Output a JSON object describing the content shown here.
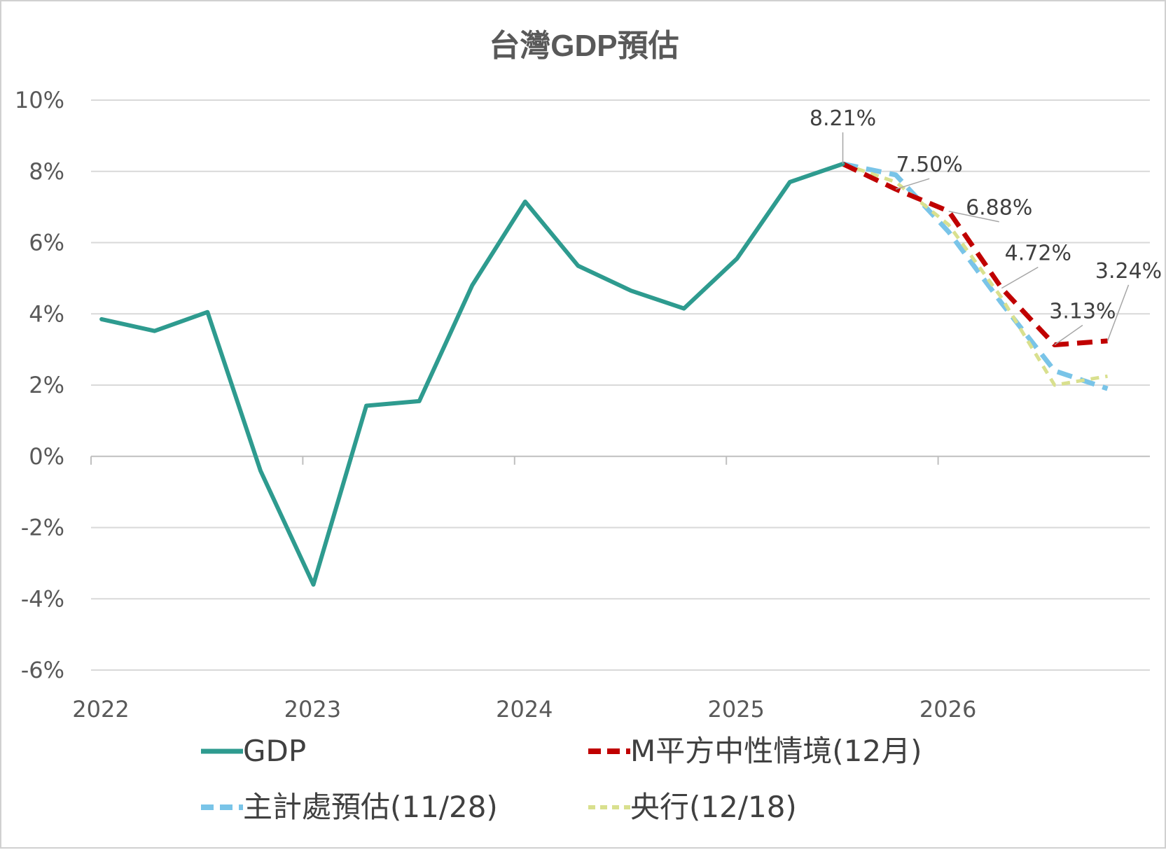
{
  "chart_data": {
    "type": "line",
    "title": "台灣GDP預估",
    "xlabel": "",
    "ylabel": "",
    "x_tick_labels": [
      "2022",
      "2023",
      "2024",
      "2025",
      "2026"
    ],
    "y_tick_labels": [
      "10%",
      "8%",
      "6%",
      "4%",
      "2%",
      "0%",
      "-2%",
      "-4%",
      "-6%"
    ],
    "y_ticks": [
      10,
      8,
      6,
      4,
      2,
      0,
      -2,
      -4,
      -6
    ],
    "ylim": [
      -6,
      10
    ],
    "x_domain": [
      0,
      20
    ],
    "x_tick_positions": [
      0,
      4,
      8,
      12,
      16
    ],
    "grid": true,
    "legend_position": "bottom",
    "series": [
      {
        "name": "GDP",
        "color": "#2e9b8f",
        "style": "solid",
        "points": [
          [
            0.2,
            3.85
          ],
          [
            1.2,
            3.52
          ],
          [
            2.2,
            4.05
          ],
          [
            3.2,
            -0.4
          ],
          [
            4.2,
            -3.6
          ],
          [
            5.2,
            1.42
          ],
          [
            6.2,
            1.55
          ],
          [
            7.2,
            4.8
          ],
          [
            8.2,
            7.15
          ],
          [
            9.2,
            5.35
          ],
          [
            10.2,
            4.65
          ],
          [
            11.2,
            4.15
          ],
          [
            12.2,
            5.55
          ],
          [
            13.2,
            7.7
          ],
          [
            14.2,
            8.21
          ]
        ]
      },
      {
        "name": "M平方中性情境(12月)",
        "color": "#c00000",
        "style": "dashed",
        "points": [
          [
            14.2,
            8.21
          ],
          [
            15.2,
            7.5
          ],
          [
            16.2,
            6.88
          ],
          [
            17.2,
            4.72
          ],
          [
            18.2,
            3.13
          ],
          [
            19.2,
            3.24
          ]
        ]
      },
      {
        "name": "主計處預估(11/28)",
        "color": "#79c4e8",
        "style": "dashed",
        "points": [
          [
            14.2,
            8.21
          ],
          [
            15.2,
            7.9
          ],
          [
            16.2,
            6.3
          ],
          [
            17.2,
            4.3
          ],
          [
            18.2,
            2.4
          ],
          [
            19.2,
            1.9
          ]
        ]
      },
      {
        "name": "央行(12/18)",
        "color": "#d9e08e",
        "style": "dotted",
        "points": [
          [
            14.2,
            8.21
          ],
          [
            15.2,
            7.7
          ],
          [
            16.2,
            6.5
          ],
          [
            17.2,
            4.45
          ],
          [
            18.2,
            2.0
          ],
          [
            19.2,
            2.25
          ]
        ]
      }
    ],
    "annotations": [
      {
        "text": "8.21%",
        "x": 14.2,
        "y": 8.21
      },
      {
        "text": "7.50%",
        "x": 15.2,
        "y": 7.5
      },
      {
        "text": "6.88%",
        "x": 16.2,
        "y": 6.88
      },
      {
        "text": "4.72%",
        "x": 17.2,
        "y": 4.72
      },
      {
        "text": "3.13%",
        "x": 18.2,
        "y": 3.13
      },
      {
        "text": "3.24%",
        "x": 19.2,
        "y": 3.24
      }
    ]
  }
}
